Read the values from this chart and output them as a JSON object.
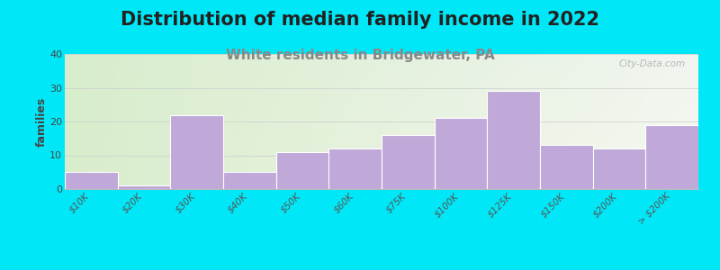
{
  "title": "Distribution of median family income in 2022",
  "subtitle": "White residents in Bridgewater, PA",
  "ylabel": "families",
  "categories": [
    "$10K",
    "$20K",
    "$30K",
    "$40K",
    "$50K",
    "$60K",
    "$75K",
    "$100K",
    "$125K",
    "$150K",
    "$200K",
    "> $200K"
  ],
  "values": [
    5,
    1,
    22,
    5,
    11,
    12,
    16,
    21,
    29,
    13,
    12,
    19
  ],
  "bar_color": "#c0a8d8",
  "bar_edge_color": "#ffffff",
  "background_outer": "#00e8f8",
  "plot_bg_color_topleft": "#d8edcc",
  "plot_bg_color_topright": "#e8f0f0",
  "plot_bg_color_bottomleft": "#d8edcc",
  "plot_bg_color_bottomright": "#f5f5f0",
  "yticks": [
    0,
    10,
    20,
    30,
    40
  ],
  "ylim": [
    0,
    40
  ],
  "title_fontsize": 15,
  "subtitle_fontsize": 11,
  "subtitle_color": "#888888",
  "watermark": "City-Data.com",
  "ylabel_fontsize": 9
}
